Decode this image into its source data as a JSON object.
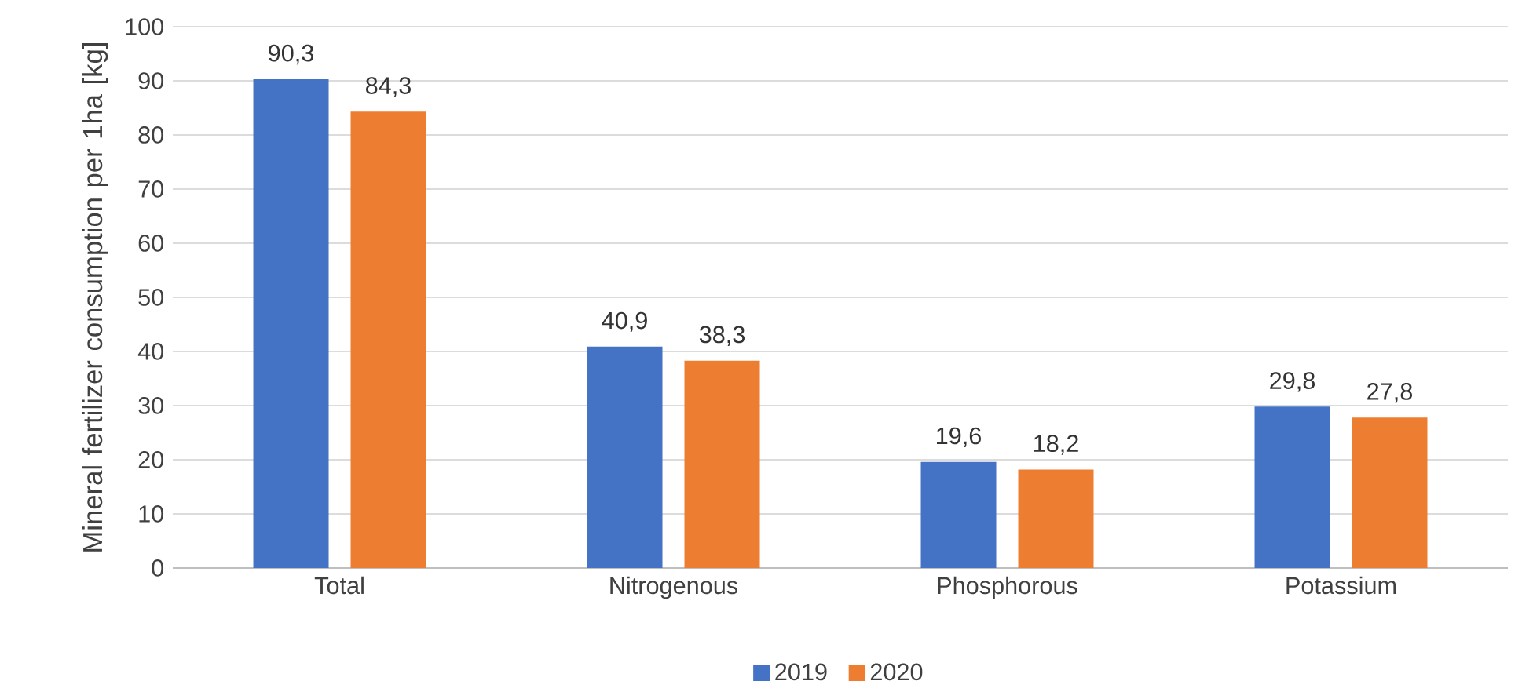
{
  "chart_data": {
    "type": "bar",
    "ylabel": "Mineral fertilizer consumption per 1ha [kg]",
    "categories": [
      "Total",
      "Nitrogenous",
      "Phosphorous",
      "Potassium"
    ],
    "series": [
      {
        "name": "2019",
        "color": "#4472c4",
        "values": [
          90.3,
          40.9,
          19.6,
          29.8
        ],
        "value_labels": [
          "90,3",
          "40,9",
          "19,6",
          "29,8"
        ]
      },
      {
        "name": "2020",
        "color": "#ed7d31",
        "values": [
          84.3,
          38.3,
          18.2,
          27.8
        ],
        "value_labels": [
          "84,3",
          "38,3",
          "18,2",
          "27,8"
        ]
      }
    ],
    "ylim": [
      0,
      100
    ],
    "yticks": [
      0,
      10,
      20,
      30,
      40,
      50,
      60,
      70,
      80,
      90,
      100
    ],
    "grid": "y",
    "legend": "bottom"
  }
}
